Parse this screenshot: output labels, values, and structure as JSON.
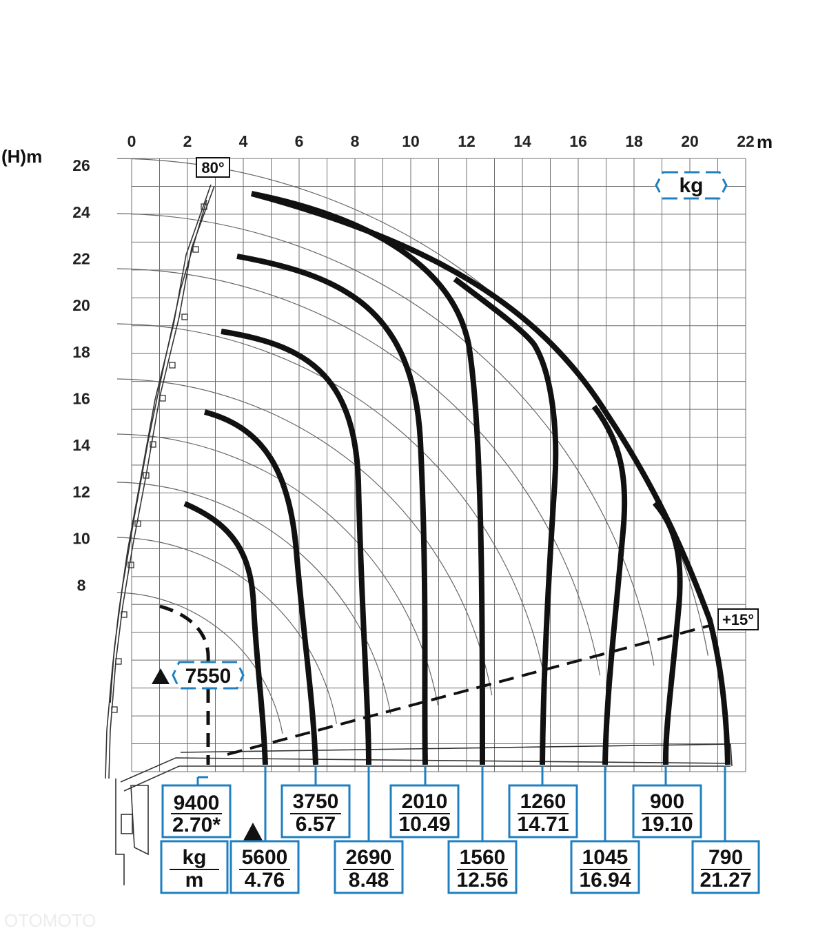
{
  "chart_data": {
    "type": "line",
    "title": "",
    "xlabel": "m",
    "ylabel": "(H)m",
    "x_ticks": [
      "0",
      "2",
      "4",
      "6",
      "8",
      "10",
      "12",
      "14",
      "16",
      "18",
      "20",
      "22"
    ],
    "y_ticks": [
      "26",
      "24",
      "22",
      "20",
      "18",
      "16",
      "14",
      "12",
      "10",
      "8"
    ],
    "xlim": [
      0,
      22
    ],
    "ylim": [
      0,
      26
    ],
    "grid": true,
    "unit_badge": "kg",
    "angle_max_label": "80°",
    "angle_min_label": "+15°",
    "unit_key": {
      "load_unit": "kg",
      "reach_unit": "m"
    },
    "peak_load": {
      "value": "7550",
      "reach_label": "9400",
      "reach_value": "2.70*"
    },
    "series": [
      {
        "load": "5600",
        "reach": "4.76"
      },
      {
        "load": "3750",
        "reach": "6.57"
      },
      {
        "load": "2690",
        "reach": "8.48"
      },
      {
        "load": "2010",
        "reach": "10.49"
      },
      {
        "load": "1560",
        "reach": "12.56"
      },
      {
        "load": "1260",
        "reach": "14.71"
      },
      {
        "load": "1045",
        "reach": "16.94"
      },
      {
        "load": "900",
        "reach": "19.10"
      },
      {
        "load": "790",
        "reach": "21.27"
      }
    ]
  },
  "colors": {
    "grid": "#6d6d6d",
    "curve": "#111111",
    "box": "#1f7fc0"
  },
  "watermark": "OTOMOTO"
}
